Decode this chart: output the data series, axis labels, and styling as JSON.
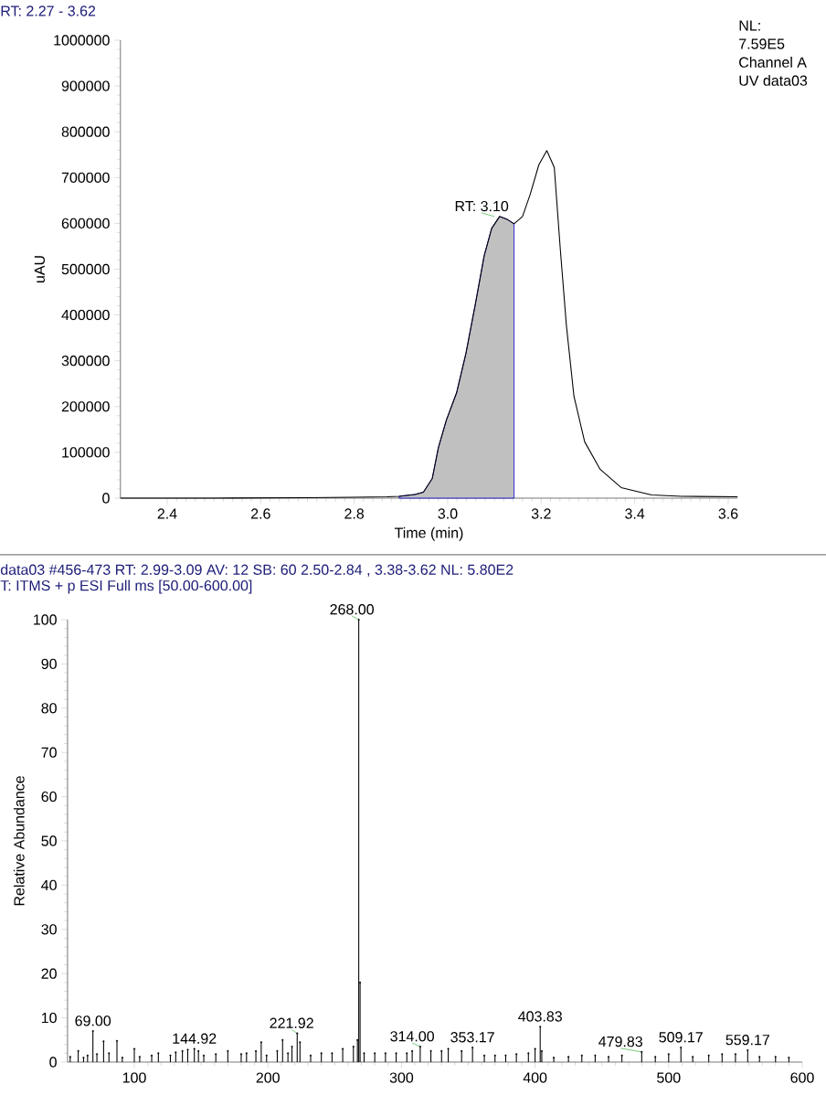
{
  "chart_data": [
    {
      "type": "line",
      "title": "RT: 2.27 - 3.62",
      "xlabel": "Time (min)",
      "ylabel": "uAU",
      "series": [
        {
          "type": "area",
          "color": "#c0c0c0",
          "x": [
            2.896,
            2.93,
            2.948,
            2.967,
            2.98,
            2.997,
            3.019,
            3.039,
            3.059,
            3.078,
            3.094,
            3.111,
            3.127,
            3.142
          ],
          "values": [
            4000,
            8000,
            13000,
            43000,
            110000,
            170000,
            230000,
            316000,
            423000,
            529000,
            589000,
            615000,
            609000,
            599000
          ]
        },
        {
          "type": "line",
          "color": "#000000",
          "x": [
            2.3,
            2.5,
            2.7,
            2.8,
            2.87,
            2.896,
            2.93,
            2.948,
            2.967,
            2.98,
            2.997,
            3.019,
            3.039,
            3.059,
            3.078,
            3.094,
            3.111,
            3.127,
            3.142,
            3.16,
            3.176,
            3.195,
            3.212,
            3.228,
            3.241,
            3.254,
            3.27,
            3.293,
            3.326,
            3.371,
            3.436,
            3.5,
            3.62
          ],
          "values": [
            0,
            0,
            1000,
            2000,
            3000,
            4000,
            8000,
            13000,
            43000,
            110000,
            170000,
            230000,
            316000,
            423000,
            529000,
            589000,
            615000,
            609000,
            599000,
            615000,
            662000,
            728000,
            759000,
            722000,
            542000,
            376000,
            223000,
            123000,
            63000,
            23000,
            7000,
            4000,
            3000
          ]
        }
      ],
      "xlim": [
        2.3,
        3.62
      ],
      "ylim": [
        0,
        1000000
      ],
      "xticks": [
        2.4,
        2.6,
        2.8,
        {
          "value": 3.0,
          "label": "3.0"
        },
        3.2,
        3.4,
        3.6
      ],
      "yticks": [
        0,
        100000,
        200000,
        300000,
        400000,
        500000,
        600000,
        700000,
        800000,
        900000,
        1000000
      ],
      "annotations": [
        "NL:",
        "7.59E5",
        "Channel A",
        "UV data03",
        {
          "text": "RT: 3.10",
          "x": 3.1,
          "y": 615000
        }
      ]
    },
    {
      "type": "lollipop",
      "marker": "circle",
      "title": "data03 #456-473  RT: 2.99-3.09  AV: 12  SB: 60  2.50-2.84 , 3.38-3.62  NL: 5.80E2",
      "subtitle": "T: ITMS + p ESI Full ms [50.00-600.00]",
      "ylabel": "Relative Abundance",
      "color": "#000000",
      "x": [
        52,
        58,
        62,
        65,
        69,
        72,
        77,
        81,
        87,
        91,
        100,
        104,
        113,
        118,
        127,
        131,
        136,
        140,
        144.92,
        148,
        152,
        161,
        170,
        180,
        184,
        191,
        195,
        199,
        207,
        211,
        215,
        218,
        221.92,
        224,
        232,
        240,
        248,
        256,
        264,
        267,
        268,
        269,
        272,
        280,
        288,
        296,
        304,
        308,
        314,
        322,
        330,
        335,
        345,
        353.17,
        362,
        370,
        378,
        386,
        395,
        400,
        403.83,
        405,
        414,
        425,
        435,
        445,
        455,
        465,
        479.83,
        490,
        500,
        509.17,
        518,
        530,
        540,
        550,
        559.17,
        568,
        580,
        590
      ],
      "values": [
        1.2,
        2.5,
        1.0,
        1.5,
        7.0,
        1.8,
        4.7,
        2.0,
        4.8,
        1.0,
        3.0,
        1.2,
        1.5,
        2.0,
        1.5,
        2.2,
        2.5,
        2.8,
        3.0,
        2.5,
        1.5,
        1.8,
        2.5,
        1.8,
        2.0,
        2.5,
        4.5,
        1.5,
        2.5,
        5.0,
        2.0,
        3.5,
        6.5,
        4.5,
        1.5,
        2.0,
        2.0,
        3.0,
        3.5,
        5.0,
        100,
        18,
        2.0,
        2.0,
        2.0,
        2.0,
        2.0,
        2.5,
        3.5,
        2.5,
        2.5,
        3.0,
        2.5,
        3.3,
        1.5,
        1.5,
        1.5,
        1.8,
        2.0,
        3.0,
        8.0,
        2.5,
        1.0,
        1.2,
        1.5,
        1.5,
        1.2,
        1.5,
        2.3,
        1.2,
        1.8,
        3.3,
        1.2,
        1.5,
        1.8,
        1.8,
        2.7,
        1.2,
        1.2,
        1.0
      ],
      "xlim": [
        50,
        600
      ],
      "ylim": [
        0,
        100
      ],
      "xticks": [
        100,
        200,
        300,
        400,
        500,
        600
      ],
      "yticks": [
        0,
        10,
        20,
        30,
        40,
        50,
        60,
        70,
        80,
        90,
        100
      ],
      "annotations": [
        {
          "text": "69.00",
          "x": 69,
          "y": 7.0
        },
        {
          "text": "144.92",
          "x": 144.92,
          "y": 3.0
        },
        {
          "text": "221.92",
          "x": 221.92,
          "y": 6.5
        },
        {
          "text": "268.00",
          "x": 268,
          "y": 100
        },
        {
          "text": "314.00",
          "x": 314,
          "y": 3.5
        },
        {
          "text": "353.17",
          "x": 353.17,
          "y": 3.3
        },
        {
          "text": "403.83",
          "x": 403.83,
          "y": 8.0
        },
        {
          "text": "479.83",
          "x": 479.83,
          "y": 2.3
        },
        {
          "text": "509.17",
          "x": 509.17,
          "y": 3.3
        },
        {
          "text": "559.17",
          "x": 559.17,
          "y": 2.7
        }
      ]
    }
  ]
}
